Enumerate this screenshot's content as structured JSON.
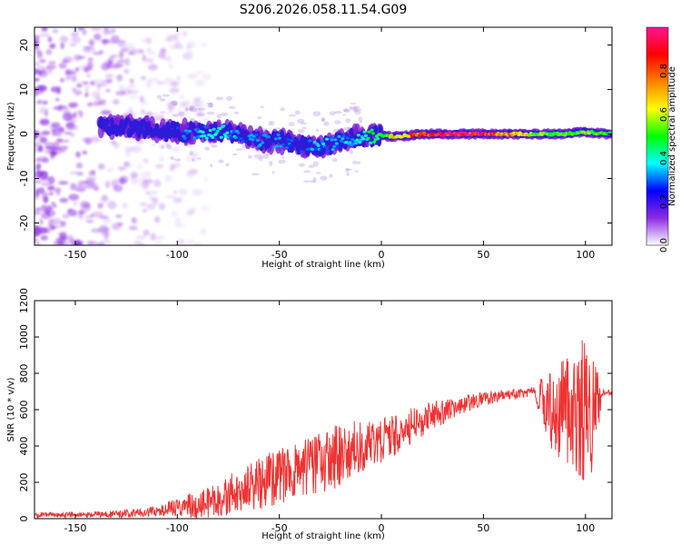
{
  "title": "S206.2026.058.11.54.G09",
  "colors": {
    "snr_line": "#ee3333",
    "spectrogram_core": "#2e1bd8",
    "spectrogram_edge": "#8a2be2",
    "frame": "#000000",
    "background": "#ffffff"
  },
  "chart_data": [
    {
      "type": "heatmap",
      "name": "spectrogram",
      "xlabel": "Height of straight line (km)",
      "ylabel": "Frequency (Hz)",
      "xlim": [
        -170,
        113
      ],
      "ylim": [
        -25,
        24
      ],
      "xticks": [
        -150,
        -100,
        -50,
        0,
        50,
        100
      ],
      "xtick_labels": [
        "-150",
        "-100",
        "-50",
        "0",
        "50",
        "100"
      ],
      "yticks": [
        -20,
        -10,
        0,
        10,
        20
      ],
      "ytick_labels": [
        "-20",
        "-10",
        "0",
        "10",
        "20"
      ],
      "colorbar": {
        "label": "Normalized spectral amplitude",
        "range": [
          0,
          1
        ],
        "ticks": [
          0,
          0.2,
          0.4,
          0.6,
          0.8
        ],
        "tick_labels": [
          "0.0",
          "0.2",
          "0.4",
          "0.6",
          "0.8"
        ],
        "colormap": [
          "#ffffff",
          "#8a2be2",
          "#0000ff",
          "#00ffff",
          "#00ff00",
          "#ffff00",
          "#ff8000",
          "#ff0000",
          "#ff1493"
        ]
      },
      "ridge": {
        "x": [
          -135,
          -120,
          -100,
          -90,
          -80,
          -70,
          -60,
          -50,
          -40,
          -30,
          -20,
          -10,
          0,
          10,
          20,
          30,
          40,
          50,
          60,
          70,
          80,
          90,
          100,
          110
        ],
        "frequency": [
          1.5,
          1.5,
          0.5,
          0.5,
          0.5,
          0,
          -1.5,
          -1.5,
          -2.5,
          -3,
          -1.5,
          -0.5,
          -0.5,
          -0.5,
          0,
          0,
          0,
          0,
          0,
          0,
          0,
          0,
          0.5,
          0
        ],
        "amplitude": [
          0.2,
          0.2,
          0.25,
          0.35,
          0.4,
          0.3,
          0.3,
          0.3,
          0.25,
          0.35,
          0.3,
          0.4,
          0.5,
          0.7,
          0.85,
          0.95,
          0.95,
          0.9,
          0.8,
          0.65,
          0.55,
          0.5,
          0.55,
          0.5
        ]
      },
      "noise_region": {
        "x_range": [
          -170,
          -100
        ],
        "frequency_range": [
          -25,
          24
        ],
        "amplitude": 0.15
      }
    },
    {
      "type": "line",
      "name": "snr",
      "xlabel": "Height of straight line (km)",
      "ylabel": "SNR (10 * v/v)",
      "xlim": [
        -170,
        113
      ],
      "ylim": [
        0,
        1200
      ],
      "xticks": [
        -150,
        -100,
        -50,
        0,
        50,
        100
      ],
      "xtick_labels": [
        "-150",
        "-100",
        "-50",
        "0",
        "50",
        "100"
      ],
      "yticks": [
        0,
        200,
        400,
        600,
        800,
        1000,
        1200
      ],
      "ytick_labels": [
        "0",
        "200",
        "400",
        "600",
        "800",
        "1000",
        "1200"
      ],
      "envelope": {
        "x": [
          -170,
          -150,
          -130,
          -115,
          -110,
          -100,
          -90,
          -80,
          -70,
          -60,
          -50,
          -40,
          -30,
          -20,
          -10,
          0,
          10,
          20,
          30,
          40,
          50,
          60,
          70,
          75,
          80,
          85,
          90,
          95,
          100,
          105,
          108,
          113
        ],
        "mean": [
          20,
          20,
          25,
          35,
          45,
          60,
          80,
          110,
          150,
          190,
          240,
          270,
          300,
          360,
          400,
          430,
          480,
          540,
          590,
          630,
          660,
          680,
          690,
          700,
          650,
          600,
          600,
          600,
          600,
          560,
          690,
          695
        ],
        "spread": [
          15,
          15,
          20,
          25,
          35,
          50,
          80,
          100,
          120,
          140,
          160,
          160,
          170,
          180,
          150,
          120,
          110,
          90,
          70,
          50,
          40,
          30,
          25,
          25,
          200,
          250,
          300,
          350,
          400,
          300,
          20,
          15
        ]
      }
    }
  ]
}
